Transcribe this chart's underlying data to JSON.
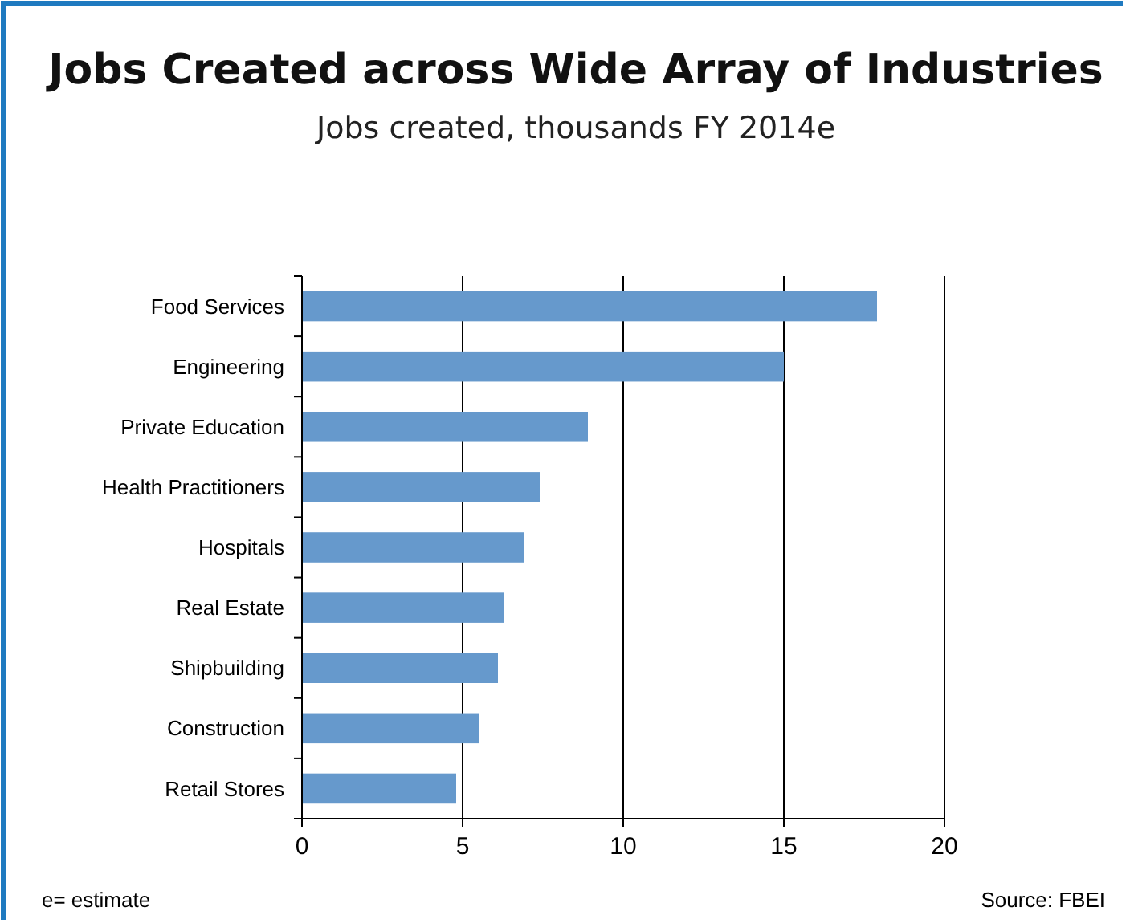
{
  "chart_data": {
    "type": "bar",
    "orientation": "horizontal",
    "title": "Jobs Created across Wide Array of Industries",
    "subtitle": "Jobs created, thousands FY 2014e",
    "categories": [
      "Food Services",
      "Engineering",
      "Private Education",
      "Health Practitioners",
      "Hospitals",
      "Real Estate",
      "Shipbuilding",
      "Construction",
      "Retail Stores"
    ],
    "values": [
      17.9,
      15,
      8.9,
      7.4,
      6.9,
      6.3,
      6.1,
      5.5,
      4.8
    ],
    "color": "#6699cc",
    "xlim": [
      0,
      20
    ],
    "xticks": [
      0,
      5,
      10,
      15,
      20
    ],
    "grid": "x",
    "annotations": [
      "e= estimate",
      "Source: FBEI"
    ]
  }
}
